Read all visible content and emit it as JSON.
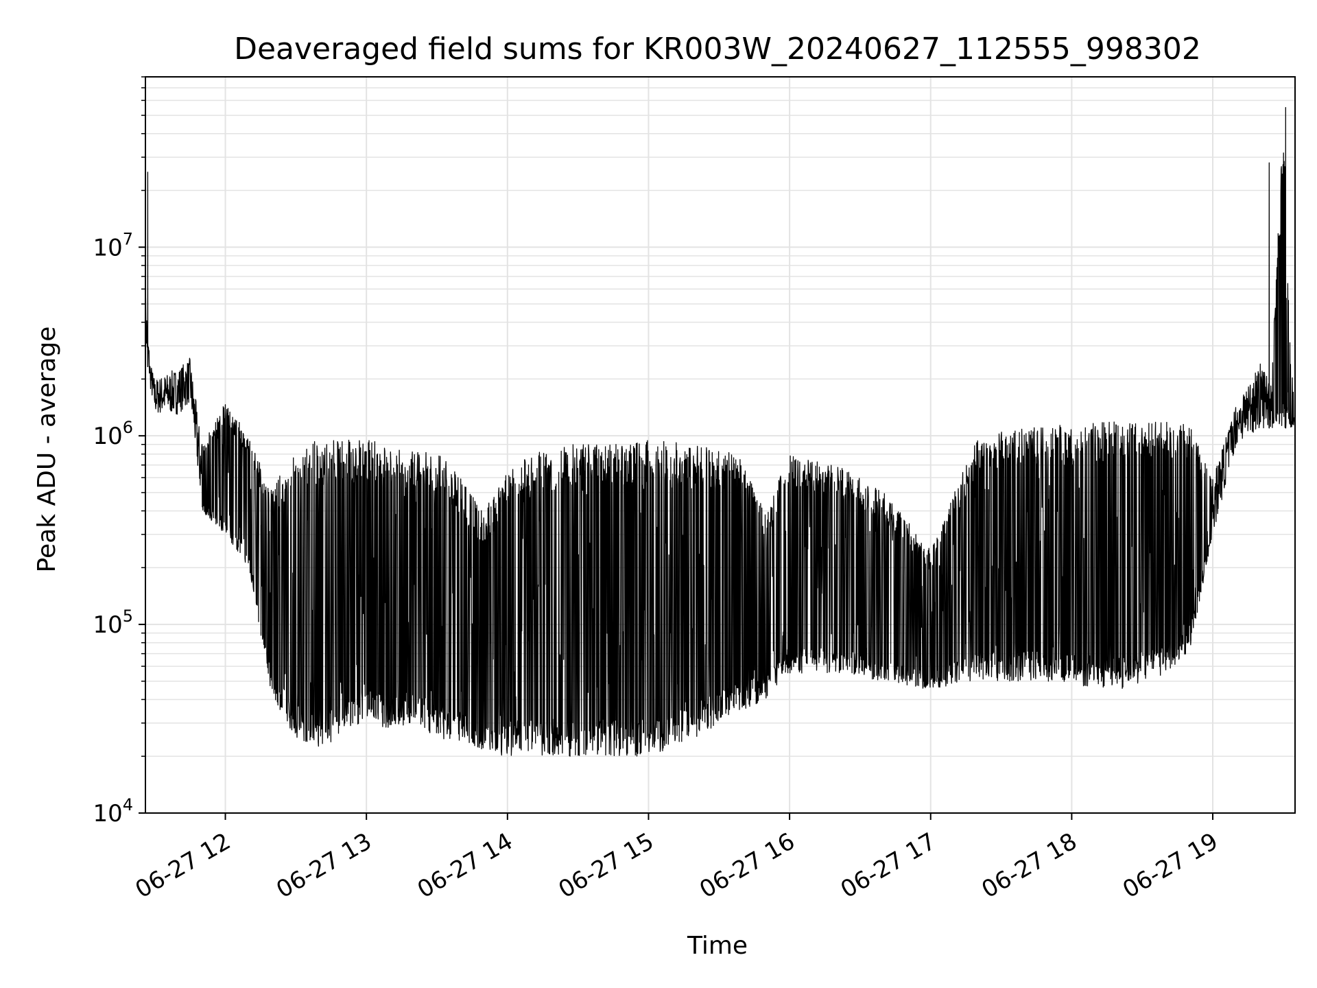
{
  "chart_data": {
    "type": "line",
    "title": "Deaveraged field sums for KR003W_20240627_112555_998302",
    "xlabel": "Time",
    "ylabel": "Peak ADU - average",
    "yscale": "log",
    "ylim": [
      10000,
      80000000
    ],
    "xlim": [
      "2024-06-27 11:26",
      "2024-06-27 19:35"
    ],
    "grid": true,
    "line_color": "#000000",
    "x_ticks": [
      {
        "value": "2024-06-27 12:00",
        "label": "06-27 12"
      },
      {
        "value": "2024-06-27 13:00",
        "label": "06-27 13"
      },
      {
        "value": "2024-06-27 14:00",
        "label": "06-27 14"
      },
      {
        "value": "2024-06-27 15:00",
        "label": "06-27 15"
      },
      {
        "value": "2024-06-27 16:00",
        "label": "06-27 16"
      },
      {
        "value": "2024-06-27 17:00",
        "label": "06-27 17"
      },
      {
        "value": "2024-06-27 18:00",
        "label": "06-27 18"
      },
      {
        "value": "2024-06-27 19:00",
        "label": "06-27 19"
      }
    ],
    "y_ticks": [
      {
        "value": 10000,
        "base": "10",
        "exp": "4"
      },
      {
        "value": 100000,
        "base": "10",
        "exp": "5"
      },
      {
        "value": 1000000,
        "base": "10",
        "exp": "6"
      },
      {
        "value": 10000000,
        "base": "10",
        "exp": "7"
      }
    ],
    "series_profile": {
      "description_free": true,
      "time": [
        "11:26",
        "11:28",
        "11:30",
        "11:40",
        "11:45",
        "11:50",
        "12:00",
        "12:10",
        "12:20",
        "12:30",
        "12:40",
        "12:50",
        "13:00",
        "13:10",
        "13:20",
        "13:30",
        "13:40",
        "13:50",
        "14:00",
        "14:20",
        "14:40",
        "15:00",
        "15:20",
        "15:40",
        "15:50",
        "16:00",
        "16:20",
        "16:40",
        "17:00",
        "17:20",
        "17:40",
        "18:00",
        "18:20",
        "18:40",
        "18:50",
        "19:00",
        "19:10",
        "19:20",
        "19:25",
        "19:30",
        "19:33",
        "19:35"
      ],
      "floor": [
        3000000,
        1800000,
        1300000,
        1300000,
        1500000,
        400000,
        300000,
        200000,
        40000,
        25000,
        22000,
        25000,
        30000,
        28000,
        30000,
        25000,
        24000,
        21000,
        20000,
        20000,
        20000,
        20000,
        25000,
        35000,
        40000,
        55000,
        55000,
        50000,
        45000,
        50000,
        50000,
        48000,
        45000,
        55000,
        70000,
        300000,
        900000,
        1100000,
        1100000,
        1100000,
        1100000,
        1100000
      ],
      "peak": [
        6000000,
        2500000,
        2000000,
        2300000,
        2600000,
        900000,
        1500000,
        1000000,
        500000,
        950000,
        950000,
        950000,
        950000,
        900000,
        900000,
        850000,
        600000,
        400000,
        700000,
        900000,
        900000,
        950000,
        900000,
        800000,
        400000,
        800000,
        700000,
        500000,
        250000,
        1000000,
        1100000,
        1150000,
        1200000,
        1200000,
        1150000,
        600000,
        1500000,
        2500000,
        2000000,
        50000000,
        3000000,
        1200000
      ],
      "spikes": [
        {
          "time": "11:27",
          "value": 25000000
        },
        {
          "time": "19:24",
          "value": 28000000
        },
        {
          "time": "19:31",
          "value": 55000000
        }
      ]
    }
  }
}
